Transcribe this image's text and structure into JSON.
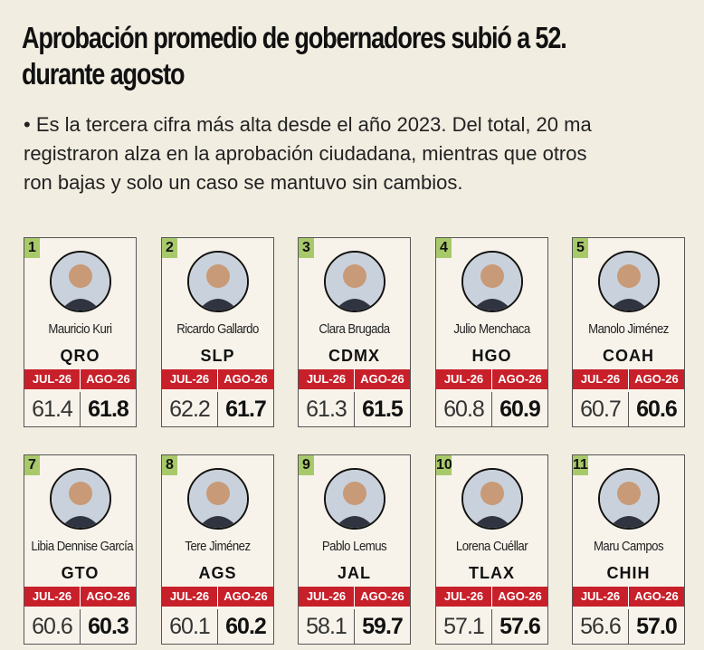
{
  "headline": {
    "line1": "Aprobación promedio de gobernadores subió a 52.",
    "line2": "durante agosto"
  },
  "summary": {
    "line1": "• Es la tercera cifra más alta desde el año 2023. Del total, 20 ma",
    "line2": "registraron alza en la aprobación ciudadana, mientras que otros",
    "line3": "ron bajas y solo un caso se mantuvo sin cambios."
  },
  "column_labels": {
    "prev": "JUL-26",
    "cur": "AGO-26"
  },
  "governors": [
    {
      "rank": "1",
      "name": "Mauricio Kuri",
      "state": "QRO",
      "prev": "61.4",
      "cur": "61.8"
    },
    {
      "rank": "2",
      "name": "Ricardo Gallardo",
      "state": "SLP",
      "prev": "62.2",
      "cur": "61.7"
    },
    {
      "rank": "3",
      "name": "Clara Brugada",
      "state": "CDMX",
      "prev": "61.3",
      "cur": "61.5"
    },
    {
      "rank": "4",
      "name": "Julio Menchaca",
      "state": "HGO",
      "prev": "60.8",
      "cur": "60.9"
    },
    {
      "rank": "5",
      "name": "Manolo Jiménez",
      "state": "COAH",
      "prev": "60.7",
      "cur": "60.6"
    },
    {
      "rank": "7",
      "name": "Libia Dennise García",
      "state": "GTO",
      "prev": "60.6",
      "cur": "60.3"
    },
    {
      "rank": "8",
      "name": "Tere Jiménez",
      "state": "AGS",
      "prev": "60.1",
      "cur": "60.2"
    },
    {
      "rank": "9",
      "name": "Pablo Lemus",
      "state": "JAL",
      "prev": "58.1",
      "cur": "59.7"
    },
    {
      "rank": "10",
      "name": "Lorena Cuéllar",
      "state": "TLAX",
      "prev": "57.1",
      "cur": "57.6"
    },
    {
      "rank": "11",
      "name": "Maru Campos",
      "state": "CHIH",
      "prev": "56.6",
      "cur": "57.0"
    }
  ],
  "colors": {
    "rank_badge": "#a8c96a",
    "header_red": "#c8202a",
    "background": "#f2ede1"
  }
}
